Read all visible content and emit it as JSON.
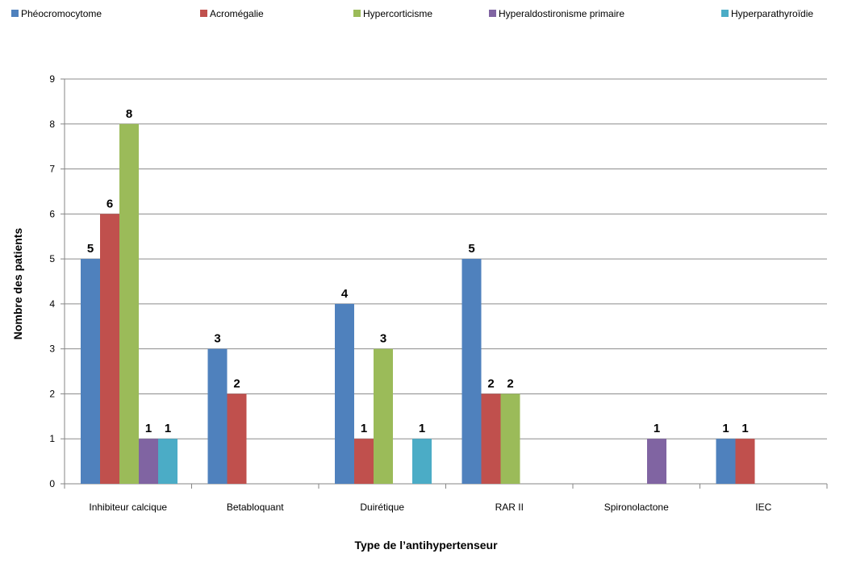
{
  "chart_data": {
    "type": "bar",
    "title": "",
    "xlabel": "Type de l’antihypertenseur",
    "ylabel": "Nombre des patients",
    "ylim": [
      0,
      9
    ],
    "yticks": [
      0,
      1,
      2,
      3,
      4,
      5,
      6,
      7,
      8,
      9
    ],
    "grid": true,
    "legend_position": "top",
    "categories": [
      "Inhibiteur calcique",
      "Betabloquant",
      "Duirétique",
      "RAR II",
      "Spironolactone",
      "IEC"
    ],
    "series": [
      {
        "name": "Phéocromocytome",
        "color": "#4f81bd",
        "values": [
          5,
          3,
          4,
          5,
          null,
          1
        ]
      },
      {
        "name": "Acromégalie",
        "color": "#c0504d",
        "values": [
          6,
          2,
          1,
          2,
          null,
          1
        ]
      },
      {
        "name": "Hypercorticisme",
        "color": "#9bbb59",
        "values": [
          8,
          null,
          3,
          2,
          null,
          null
        ]
      },
      {
        "name": "Hyperaldostironisme primaire",
        "color": "#8064a2",
        "values": [
          1,
          null,
          null,
          null,
          1,
          null
        ]
      },
      {
        "name": "Hyperparathyroïdie",
        "color": "#4bacc6",
        "values": [
          1,
          null,
          1,
          null,
          null,
          null
        ]
      }
    ]
  }
}
